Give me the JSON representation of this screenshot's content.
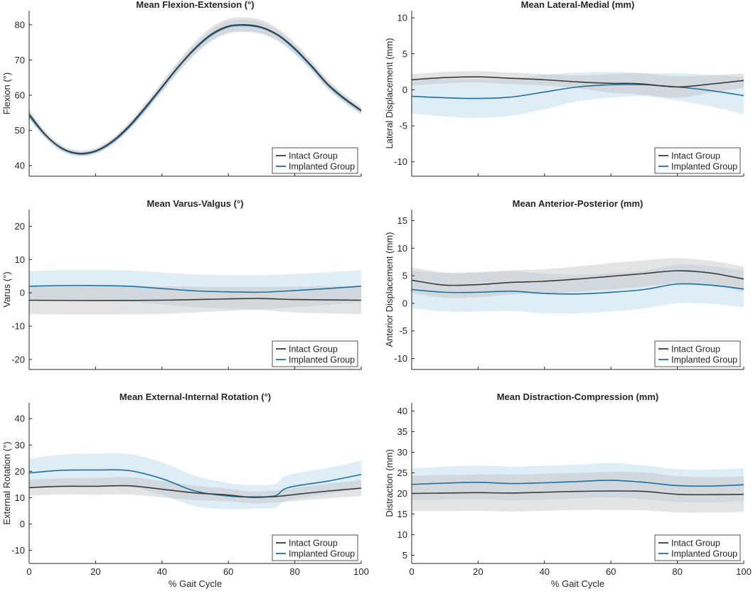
{
  "colors": {
    "intact_line": "#3a3a3a",
    "intact_band": "#bfbfbf",
    "implanted_line": "#1f6fa3",
    "implanted_band": "#a9cfe8",
    "axis": "#262626",
    "legend_border": "#262626"
  },
  "legend": {
    "intact": "Intact Group",
    "implanted": "Implanted Group"
  },
  "chart_data": [
    {
      "type": "line",
      "title": "Mean Flexion-Extension (°)",
      "ylabel": "Flexion (°)",
      "xlabel": "",
      "xlim": [
        0,
        100
      ],
      "ylim": [
        37,
        84
      ],
      "yticks": [
        40,
        50,
        60,
        70,
        80
      ],
      "xticks": [],
      "show_xticklabels": false,
      "series": [
        {
          "name": "Intact Group",
          "x": [
            0,
            5,
            10,
            15,
            20,
            25,
            30,
            35,
            40,
            45,
            50,
            55,
            60,
            65,
            70,
            75,
            80,
            85,
            90,
            95,
            100
          ],
          "values": [
            54.7,
            48.7,
            44.9,
            43.5,
            44.2,
            46.9,
            51.2,
            56.6,
            62.4,
            68.2,
            73.4,
            77.4,
            79.6,
            80.0,
            79.3,
            77.1,
            73.3,
            68.4,
            63.1,
            59.1,
            55.7
          ],
          "sd": [
            1.2,
            1.0,
            0.9,
            0.8,
            0.8,
            0.9,
            1.0,
            1.2,
            1.4,
            1.6,
            1.8,
            2.0,
            2.1,
            2.1,
            2.0,
            1.8,
            1.6,
            1.4,
            1.3,
            1.2,
            1.1
          ]
        },
        {
          "name": "Implanted Group",
          "x": [
            0,
            5,
            10,
            15,
            20,
            25,
            30,
            35,
            40,
            45,
            50,
            55,
            60,
            65,
            70,
            75,
            80,
            85,
            90,
            95,
            100
          ],
          "values": [
            54.1,
            48.5,
            44.7,
            43.3,
            44.0,
            46.6,
            50.8,
            56.2,
            62.1,
            68.0,
            73.1,
            77.1,
            79.4,
            79.8,
            79.1,
            76.9,
            73.0,
            68.1,
            62.8,
            58.8,
            55.5
          ],
          "sd": [
            0.9,
            0.8,
            0.7,
            0.7,
            0.7,
            0.8,
            0.9,
            1.0,
            1.2,
            1.3,
            1.4,
            1.5,
            1.6,
            1.6,
            1.5,
            1.4,
            1.3,
            1.2,
            1.1,
            1.0,
            0.9
          ]
        }
      ]
    },
    {
      "type": "line",
      "title": "Mean Lateral-Medial (mm)",
      "ylabel": "Lateral Displacement (mm)",
      "xlabel": "",
      "xlim": [
        0,
        100
      ],
      "ylim": [
        -12,
        11
      ],
      "yticks": [
        -10,
        -5,
        0,
        5,
        10
      ],
      "xticks": [],
      "show_xticklabels": false,
      "series": [
        {
          "name": "Intact Group",
          "x": [
            0,
            10,
            20,
            30,
            40,
            50,
            60,
            65,
            70,
            80,
            90,
            100
          ],
          "values": [
            1.4,
            1.7,
            1.8,
            1.6,
            1.4,
            1.1,
            0.9,
            0.9,
            0.8,
            0.4,
            0.8,
            1.3
          ],
          "sd": [
            0.8,
            0.8,
            0.8,
            0.8,
            0.8,
            0.9,
            1.3,
            1.4,
            1.5,
            1.5,
            1.2,
            1.0
          ]
        },
        {
          "name": "Implanted Group",
          "x": [
            0,
            10,
            20,
            30,
            40,
            50,
            60,
            70,
            80,
            90,
            100
          ],
          "values": [
            -0.9,
            -1.1,
            -1.2,
            -1.0,
            -0.3,
            0.4,
            0.7,
            0.7,
            0.4,
            -0.1,
            -0.8
          ],
          "sd": [
            2.4,
            2.6,
            2.7,
            2.6,
            2.4,
            2.0,
            1.8,
            1.6,
            1.9,
            2.2,
            2.6
          ]
        }
      ]
    },
    {
      "type": "line",
      "title": "Mean Varus-Valgus (°)",
      "ylabel": "Varus (°)",
      "xlabel": "",
      "xlim": [
        0,
        100
      ],
      "ylim": [
        -23,
        25
      ],
      "yticks": [
        -20,
        -10,
        0,
        10,
        20
      ],
      "xticks": [],
      "show_xticklabels": false,
      "series": [
        {
          "name": "Intact Group",
          "x": [
            0,
            20,
            40,
            60,
            70,
            80,
            100
          ],
          "values": [
            -2.2,
            -2.3,
            -2.2,
            -1.8,
            -1.7,
            -2.0,
            -2.2
          ],
          "sd": [
            4.2,
            4.2,
            4.1,
            3.6,
            3.5,
            3.9,
            4.2
          ]
        },
        {
          "name": "Implanted Group",
          "x": [
            0,
            10,
            20,
            30,
            40,
            50,
            60,
            70,
            80,
            90,
            100
          ],
          "values": [
            2.0,
            2.2,
            2.2,
            2.0,
            1.3,
            0.6,
            0.3,
            0.2,
            0.7,
            1.3,
            2.0
          ],
          "sd": [
            4.5,
            4.6,
            4.6,
            4.7,
            4.8,
            4.9,
            5.0,
            5.1,
            5.0,
            4.9,
            4.8
          ]
        }
      ]
    },
    {
      "type": "line",
      "title": "Mean Anterior-Posterior (mm)",
      "ylabel": "Anterior Displacement (mm)",
      "xlabel": "",
      "xlim": [
        0,
        100
      ],
      "ylim": [
        -12,
        17
      ],
      "yticks": [
        -10,
        -5,
        0,
        5,
        10,
        15
      ],
      "xticks": [],
      "show_xticklabels": false,
      "series": [
        {
          "name": "Intact Group",
          "x": [
            0,
            10,
            20,
            30,
            40,
            50,
            60,
            70,
            80,
            90,
            100
          ],
          "values": [
            4.2,
            3.3,
            3.4,
            3.8,
            4.0,
            4.4,
            4.9,
            5.4,
            5.9,
            5.5,
            4.4
          ],
          "sd": [
            2.3,
            2.3,
            2.3,
            2.2,
            2.2,
            2.3,
            2.4,
            2.4,
            2.3,
            2.2,
            2.3
          ]
        },
        {
          "name": "Implanted Group",
          "x": [
            0,
            10,
            20,
            30,
            40,
            50,
            60,
            70,
            80,
            90,
            100
          ],
          "values": [
            2.5,
            2.0,
            2.0,
            2.2,
            1.8,
            1.7,
            2.0,
            2.5,
            3.5,
            3.3,
            2.6
          ],
          "sd": [
            3.4,
            3.5,
            3.5,
            3.6,
            3.6,
            3.5,
            3.5,
            3.4,
            3.5,
            3.4,
            3.3
          ]
        }
      ]
    },
    {
      "type": "line",
      "title": "Mean External-Internal Rotation (°)",
      "ylabel": "External Rotation (°)",
      "xlabel": "% Gait Cycle",
      "xlim": [
        0,
        100
      ],
      "ylim": [
        -15,
        46
      ],
      "yticks": [
        -10,
        0,
        10,
        20,
        30,
        40
      ],
      "xticks": [
        0,
        20,
        40,
        60,
        80,
        100
      ],
      "show_xticklabels": true,
      "series": [
        {
          "name": "Intact Group",
          "x": [
            0,
            10,
            20,
            30,
            40,
            50,
            60,
            67,
            75,
            80,
            90,
            100
          ],
          "values": [
            13.8,
            14.3,
            14.3,
            14.5,
            13.2,
            11.8,
            11.0,
            10.1,
            10.5,
            11.2,
            12.5,
            13.6
          ],
          "sd": [
            3.0,
            3.1,
            3.2,
            3.3,
            3.1,
            2.7,
            2.4,
            2.2,
            2.3,
            2.5,
            2.8,
            3.0
          ]
        },
        {
          "name": "Implanted Group",
          "x": [
            0,
            10,
            20,
            30,
            40,
            50,
            60,
            67,
            74,
            78,
            90,
            100
          ],
          "values": [
            19.4,
            20.4,
            20.5,
            20.3,
            17.2,
            12.5,
            10.6,
            10.3,
            10.7,
            13.8,
            16.3,
            18.8
          ],
          "sd": [
            5.4,
            6.0,
            6.2,
            6.3,
            6.2,
            5.8,
            5.0,
            4.5,
            4.5,
            4.8,
            5.0,
            5.3
          ]
        }
      ]
    },
    {
      "type": "line",
      "title": "Mean Distraction-Compression (mm)",
      "ylabel": "Distraction (mm)",
      "xlabel": "% Gait Cycle",
      "xlim": [
        0,
        100
      ],
      "ylim": [
        3,
        42
      ],
      "yticks": [
        5,
        10,
        15,
        20,
        25,
        30,
        35,
        40
      ],
      "xticks": [
        0,
        20,
        40,
        60,
        80,
        100
      ],
      "show_xticklabels": true,
      "series": [
        {
          "name": "Intact Group",
          "x": [
            0,
            10,
            20,
            30,
            40,
            50,
            60,
            70,
            80,
            90,
            100
          ],
          "values": [
            20.0,
            20.1,
            20.2,
            20.1,
            20.3,
            20.5,
            20.6,
            20.5,
            19.8,
            19.7,
            19.8
          ],
          "sd": [
            4.3,
            4.4,
            4.4,
            4.5,
            4.5,
            4.5,
            4.6,
            4.6,
            4.4,
            4.3,
            4.3
          ]
        },
        {
          "name": "Implanted Group",
          "x": [
            0,
            10,
            20,
            30,
            40,
            50,
            60,
            70,
            80,
            90,
            100
          ],
          "values": [
            22.2,
            22.5,
            22.7,
            22.4,
            22.6,
            22.9,
            23.2,
            22.7,
            21.9,
            21.8,
            22.1
          ],
          "sd": [
            3.9,
            4.0,
            4.1,
            4.1,
            4.1,
            4.1,
            4.2,
            4.1,
            4.0,
            4.0,
            4.0
          ]
        }
      ]
    }
  ]
}
